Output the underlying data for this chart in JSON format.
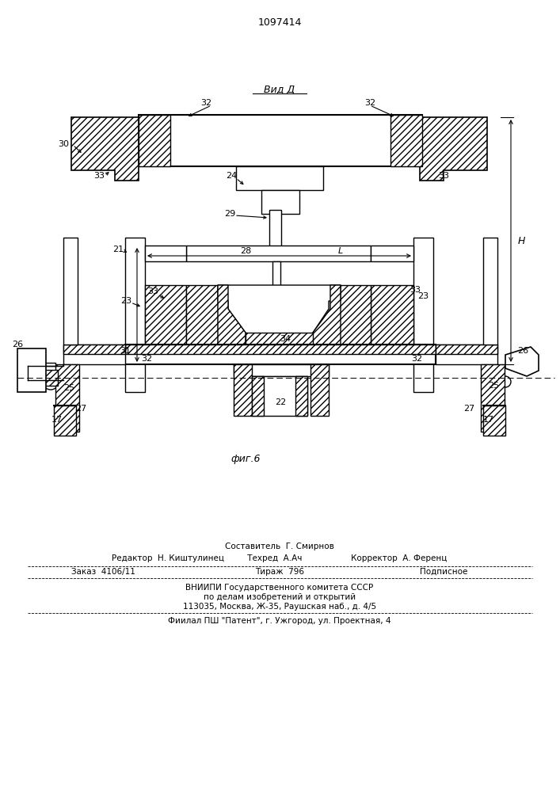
{
  "title_number": "1097414",
  "view_label": "Вид Д",
  "fig_label": "фиг.6",
  "bg_color": "#ffffff",
  "line_color": "#000000",
  "footer": {
    "line1": "Составитель  Г. Смирнов",
    "line2": "Редактор  Н. Киштулинец         Техред  А.Ач                   Корректор  А. Ференц",
    "col1": "Заказ  4106/11",
    "col2": "Тираж  796",
    "col3": "Подписное",
    "org1": "ВНИИПИ Государственного комитета СССР",
    "org2": "по делам изобретений и открытий",
    "org3": "113035, Москва, Ж-35, Раушская наб., д. 4/5",
    "bottom": "Фиилал ПШ \"Патент\", г. Ужгород, ул. Проектная, 4"
  }
}
